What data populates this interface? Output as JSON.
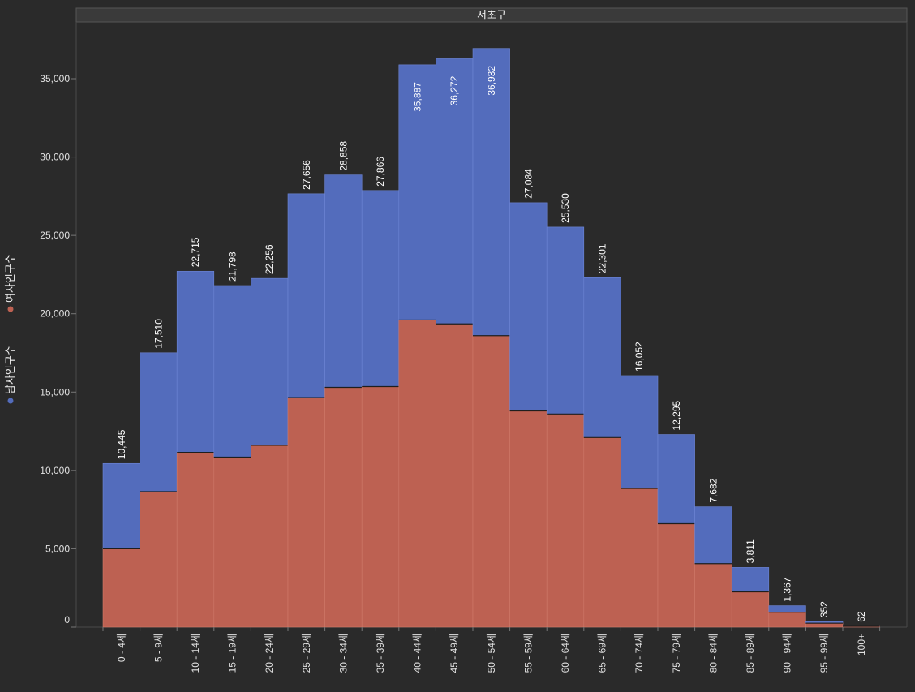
{
  "chart_data": {
    "type": "bar",
    "stacked": true,
    "title": "서초구",
    "categories": [
      "0 - 4세",
      "5 - 9세",
      "10 - 14세",
      "15 - 19세",
      "20 - 24세",
      "25 - 29세",
      "30 - 34세",
      "35 - 39세",
      "40 - 44세",
      "45 - 49세",
      "50 - 54세",
      "55 - 59세",
      "60 - 64세",
      "65 - 69세",
      "70 - 74세",
      "75 - 79세",
      "80 - 84세",
      "85 - 89세",
      "90 - 94세",
      "95 - 99세",
      "100+"
    ],
    "series": [
      {
        "name": "여자인구수",
        "color": "#bd6152",
        "values": [
          5000,
          8650,
          11150,
          10850,
          11600,
          14650,
          15300,
          15350,
          19600,
          19350,
          18600,
          13800,
          13600,
          12100,
          8850,
          6600,
          4050,
          2250,
          950,
          250,
          50
        ]
      },
      {
        "name": "남자인구수",
        "color": "#536cbc",
        "values": [
          5445,
          8860,
          11565,
          10948,
          10656,
          13006,
          13558,
          12516,
          16287,
          16922,
          18332,
          13284,
          11930,
          10201,
          7202,
          5695,
          3632,
          1561,
          417,
          102,
          12
        ]
      }
    ],
    "totals": [
      10445,
      17510,
      22715,
      21798,
      22256,
      27656,
      28858,
      27866,
      35887,
      36272,
      36932,
      27084,
      25530,
      22301,
      16052,
      12295,
      7682,
      3811,
      1367,
      352,
      62
    ],
    "total_labels": [
      "10,445",
      "17,510",
      "22,715",
      "21,798",
      "22,256",
      "27,656",
      "28,858",
      "27,866",
      "35,887",
      "36,272",
      "36,932",
      "27,084",
      "25,530",
      "22,301",
      "16,052",
      "12,295",
      "7,682",
      "3,811",
      "1,367",
      "352",
      "62"
    ],
    "ylim": [
      0,
      37000
    ],
    "yticks": [
      0,
      5000,
      10000,
      15000,
      20000,
      25000,
      30000,
      35000
    ],
    "ytick_labels": [
      "0",
      "5,000",
      "10,000",
      "15,000",
      "20,000",
      "25,000",
      "30,000",
      "35,000"
    ],
    "xlabel": "",
    "ylabel": "",
    "grid": false,
    "legend_position": "left-vertical",
    "legend_order": [
      "남자인구수",
      "여자인구수"
    ]
  }
}
